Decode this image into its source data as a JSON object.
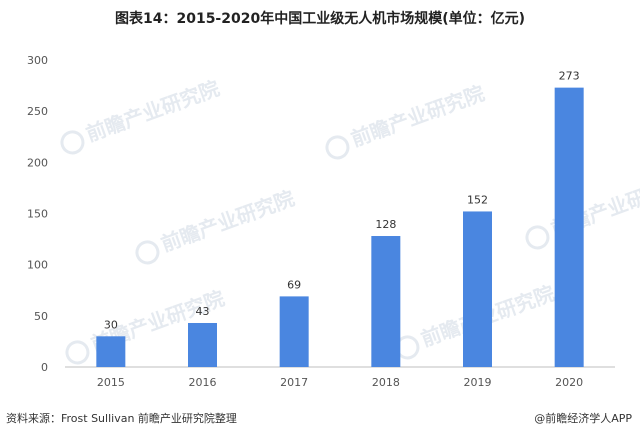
{
  "title": "图表14：2015-2020年中国工业级无人机市场规模(单位：亿元)",
  "source": "资料来源：Frost Sullivan 前瞻产业研究院整理",
  "brand": "@前瞻经济学人APP",
  "watermark": "前瞻产业研究院",
  "colors": {
    "bar": "#4a86e0",
    "axis": "#bfbfbf"
  },
  "chart_data": {
    "type": "bar",
    "categories": [
      "2015",
      "2016",
      "2017",
      "2018",
      "2019",
      "2020"
    ],
    "values": [
      30,
      43,
      69,
      128,
      152,
      273
    ],
    "title": "图表14：2015-2020年中国工业级无人机市场规模(单位：亿元)",
    "xlabel": "",
    "ylabel": "",
    "ylim": [
      0,
      300
    ],
    "yticks": [
      "0",
      "50",
      "100",
      "150",
      "200",
      "250",
      "300"
    ],
    "grid": false,
    "legend": "none"
  }
}
